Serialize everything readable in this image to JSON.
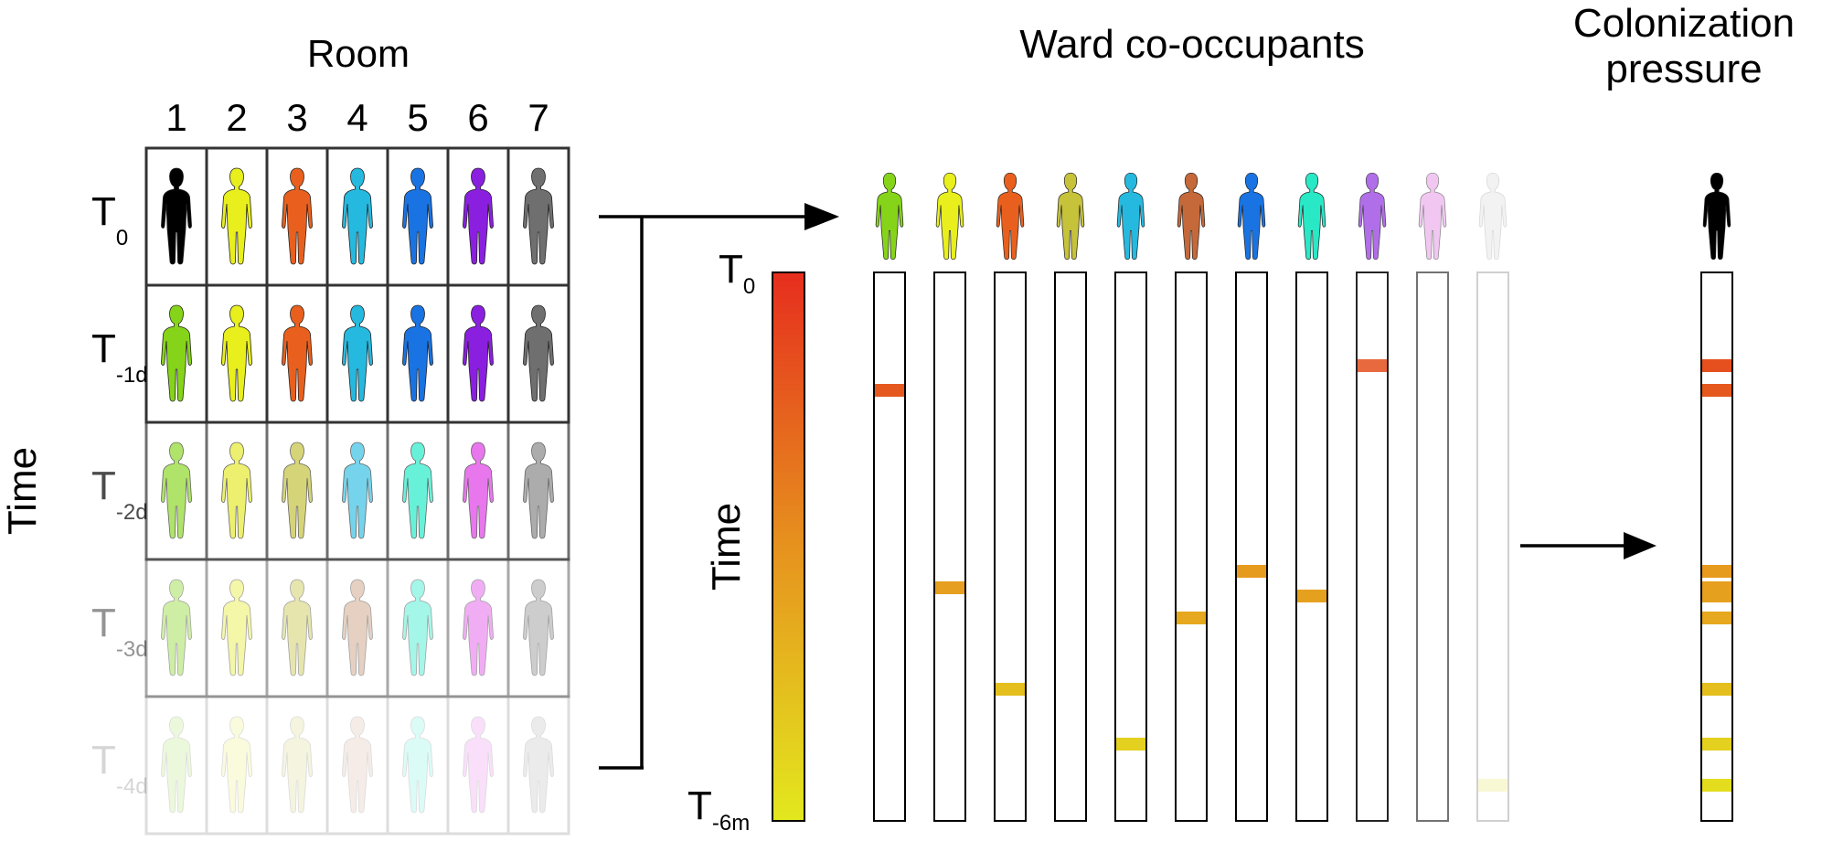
{
  "room_panel": {
    "title": "Room",
    "columns": [
      "1",
      "2",
      "3",
      "4",
      "5",
      "6",
      "7"
    ],
    "rows": [
      {
        "label": "T",
        "sub": "0",
        "fade": 1.0,
        "colors": [
          "#000000",
          "#e8ef1c",
          "#e9601e",
          "#26b9df",
          "#1a73e2",
          "#8b1fe0",
          "#6f6f6f"
        ]
      },
      {
        "label": "T",
        "sub": "-1d",
        "fade": 1.0,
        "colors": [
          "#86d419",
          "#e8ef1c",
          "#e9601e",
          "#26b9df",
          "#1a73e2",
          "#8b1fe0",
          "#6f6f6f"
        ]
      },
      {
        "label": "T",
        "sub": "-2d",
        "fade": 0.7,
        "colors": [
          "#8fd82b",
          "#e6ea32",
          "#c6c240",
          "#3cc2e4",
          "#29ecc9",
          "#df3ee6",
          "#8a8a8a"
        ]
      },
      {
        "label": "T",
        "sub": "-3d",
        "fade": 0.42,
        "colors": [
          "#8fd82b",
          "#e6ea32",
          "#c6c240",
          "#c5906e",
          "#29ecc9",
          "#df3ee6",
          "#8a8a8a"
        ]
      },
      {
        "label": "T",
        "sub": "-4d",
        "fade": 0.16,
        "colors": [
          "#8fd82b",
          "#e6ea32",
          "#c6c240",
          "#c5906e",
          "#29ecc9",
          "#df3ee6",
          "#8a8a8a"
        ]
      }
    ],
    "time_label": "Time"
  },
  "ward_panel": {
    "title": "Ward co-occupants",
    "scale_top": {
      "label": "T",
      "sub": "0"
    },
    "scale_bottom": {
      "label": "T",
      "sub": "-6m"
    },
    "time_label": "Time",
    "gradient_top": "#e62e1e",
    "gradient_mid": "#e6921e",
    "gradient_bottom": "#e3e81e",
    "occupants": [
      {
        "color": "#86d419",
        "fade": 1.0,
        "events": [
          0.215
        ]
      },
      {
        "color": "#e8ef1c",
        "fade": 1.0,
        "events": [
          0.575
        ]
      },
      {
        "color": "#e9601e",
        "fade": 1.0,
        "events": [
          0.76
        ]
      },
      {
        "color": "#c6c23a",
        "fade": 1.0,
        "events": []
      },
      {
        "color": "#26b9df",
        "fade": 1.0,
        "events": [
          0.86
        ]
      },
      {
        "color": "#c5693a",
        "fade": 1.0,
        "events": [
          0.63
        ]
      },
      {
        "color": "#1a73e2",
        "fade": 1.0,
        "events": [
          0.545
        ]
      },
      {
        "color": "#29e8c6",
        "fade": 1.0,
        "events": [
          0.59
        ]
      },
      {
        "color": "#a455e6",
        "fade": 0.85,
        "events": [
          0.17
        ]
      },
      {
        "color": "#e79be8",
        "fade": 0.55,
        "events": []
      },
      {
        "color": "#bbbbbb",
        "fade": 0.18,
        "events": [
          0.935
        ]
      }
    ]
  },
  "pressure_panel": {
    "title_line1": "Colonization",
    "title_line2": "pressure",
    "figure_color": "#000000",
    "events": [
      0.17,
      0.215,
      0.545,
      0.575,
      0.59,
      0.63,
      0.76,
      0.86,
      0.935
    ]
  }
}
